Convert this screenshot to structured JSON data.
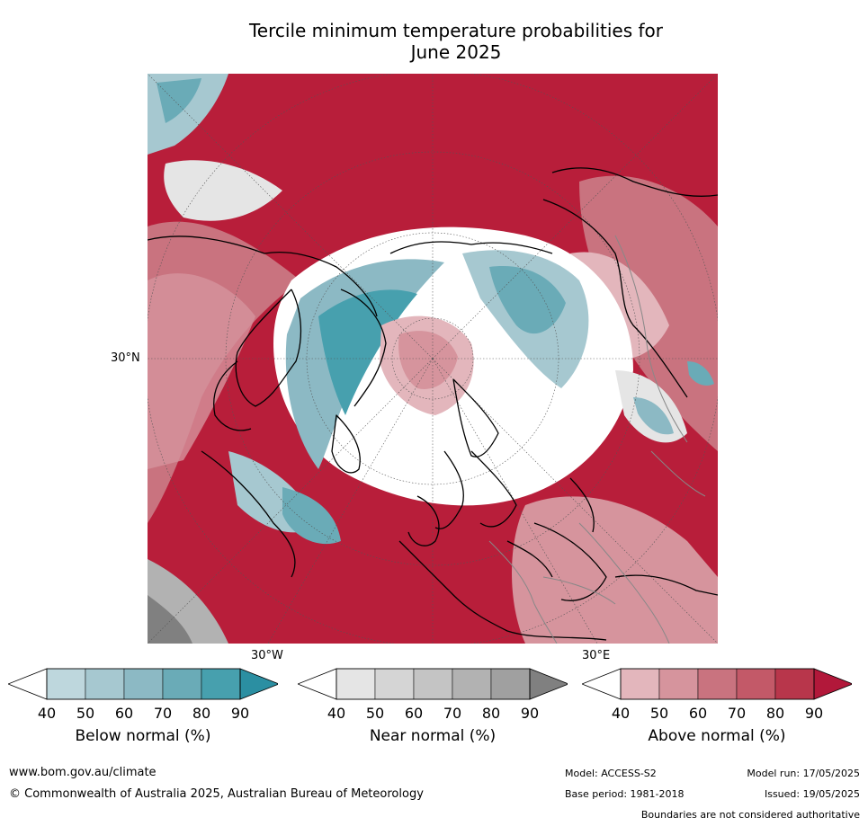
{
  "title_line1": "Tercile minimum temperature probabilities for",
  "title_line2": "June 2025",
  "map": {
    "lat_label": "30°N",
    "lon_label_west": "30°W",
    "lon_label_east": "30°E"
  },
  "colorbars": {
    "below": {
      "label": "Below normal (%)",
      "ticks": [
        "40",
        "50",
        "60",
        "70",
        "80",
        "90"
      ],
      "colors": [
        "#ffffff",
        "#bed7dd",
        "#a6c8d0",
        "#8cb9c4",
        "#6aabb7",
        "#47a0ae",
        "#2b8fa2"
      ]
    },
    "near": {
      "label": "Near normal (%)",
      "ticks": [
        "40",
        "50",
        "60",
        "70",
        "80",
        "90"
      ],
      "colors": [
        "#ffffff",
        "#e5e5e5",
        "#d5d5d5",
        "#c4c4c4",
        "#b2b2b2",
        "#a0a0a0",
        "#808080"
      ]
    },
    "above": {
      "label": "Above normal (%)",
      "ticks": [
        "40",
        "50",
        "60",
        "70",
        "80",
        "90"
      ],
      "colors": [
        "#ffffff",
        "#e3b6bc",
        "#d6949d",
        "#c9737f",
        "#c35968",
        "#b8364b",
        "#b2183a"
      ]
    }
  },
  "footer": {
    "url": "www.bom.gov.au/climate",
    "copyright": "© Commonwealth of Australia 2025, Australian Bureau of Meteorology",
    "model": "Model: ACCESS-S2",
    "model_run": "Model run: 17/05/2025",
    "base_period": "Base period: 1981-2018",
    "issued": "Issued: 19/05/2025",
    "disclaimer": "Boundaries are not considered authoritative"
  }
}
